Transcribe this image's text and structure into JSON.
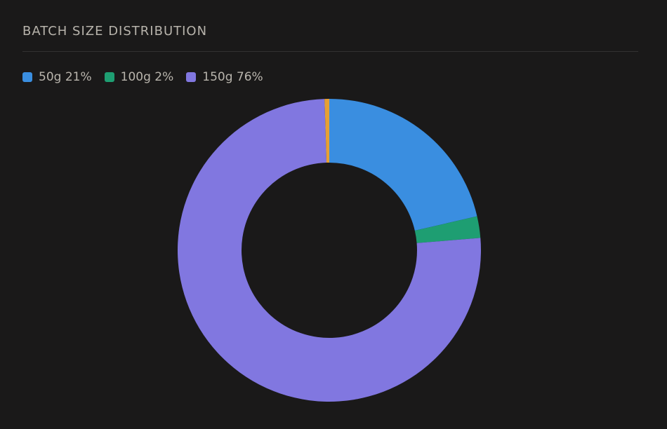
{
  "header": {
    "title": "BATCH SIZE DISTRIBUTION"
  },
  "chart_data": {
    "type": "pie",
    "style": "donut",
    "legend_position": "top-left",
    "categories": [
      "50g",
      "100g",
      "150g",
      ""
    ],
    "values": [
      21.4,
      2.3,
      75.8,
      0.5
    ],
    "colors": [
      "#3a8ee0",
      "#1e9e72",
      "#8177e0",
      "#e6a034"
    ],
    "legend": [
      {
        "label": "50g 21%",
        "color": "#3a8ee0"
      },
      {
        "label": "100g 2%",
        "color": "#1e9e72"
      },
      {
        "label": "150g 76%",
        "color": "#8177e0"
      }
    ]
  }
}
